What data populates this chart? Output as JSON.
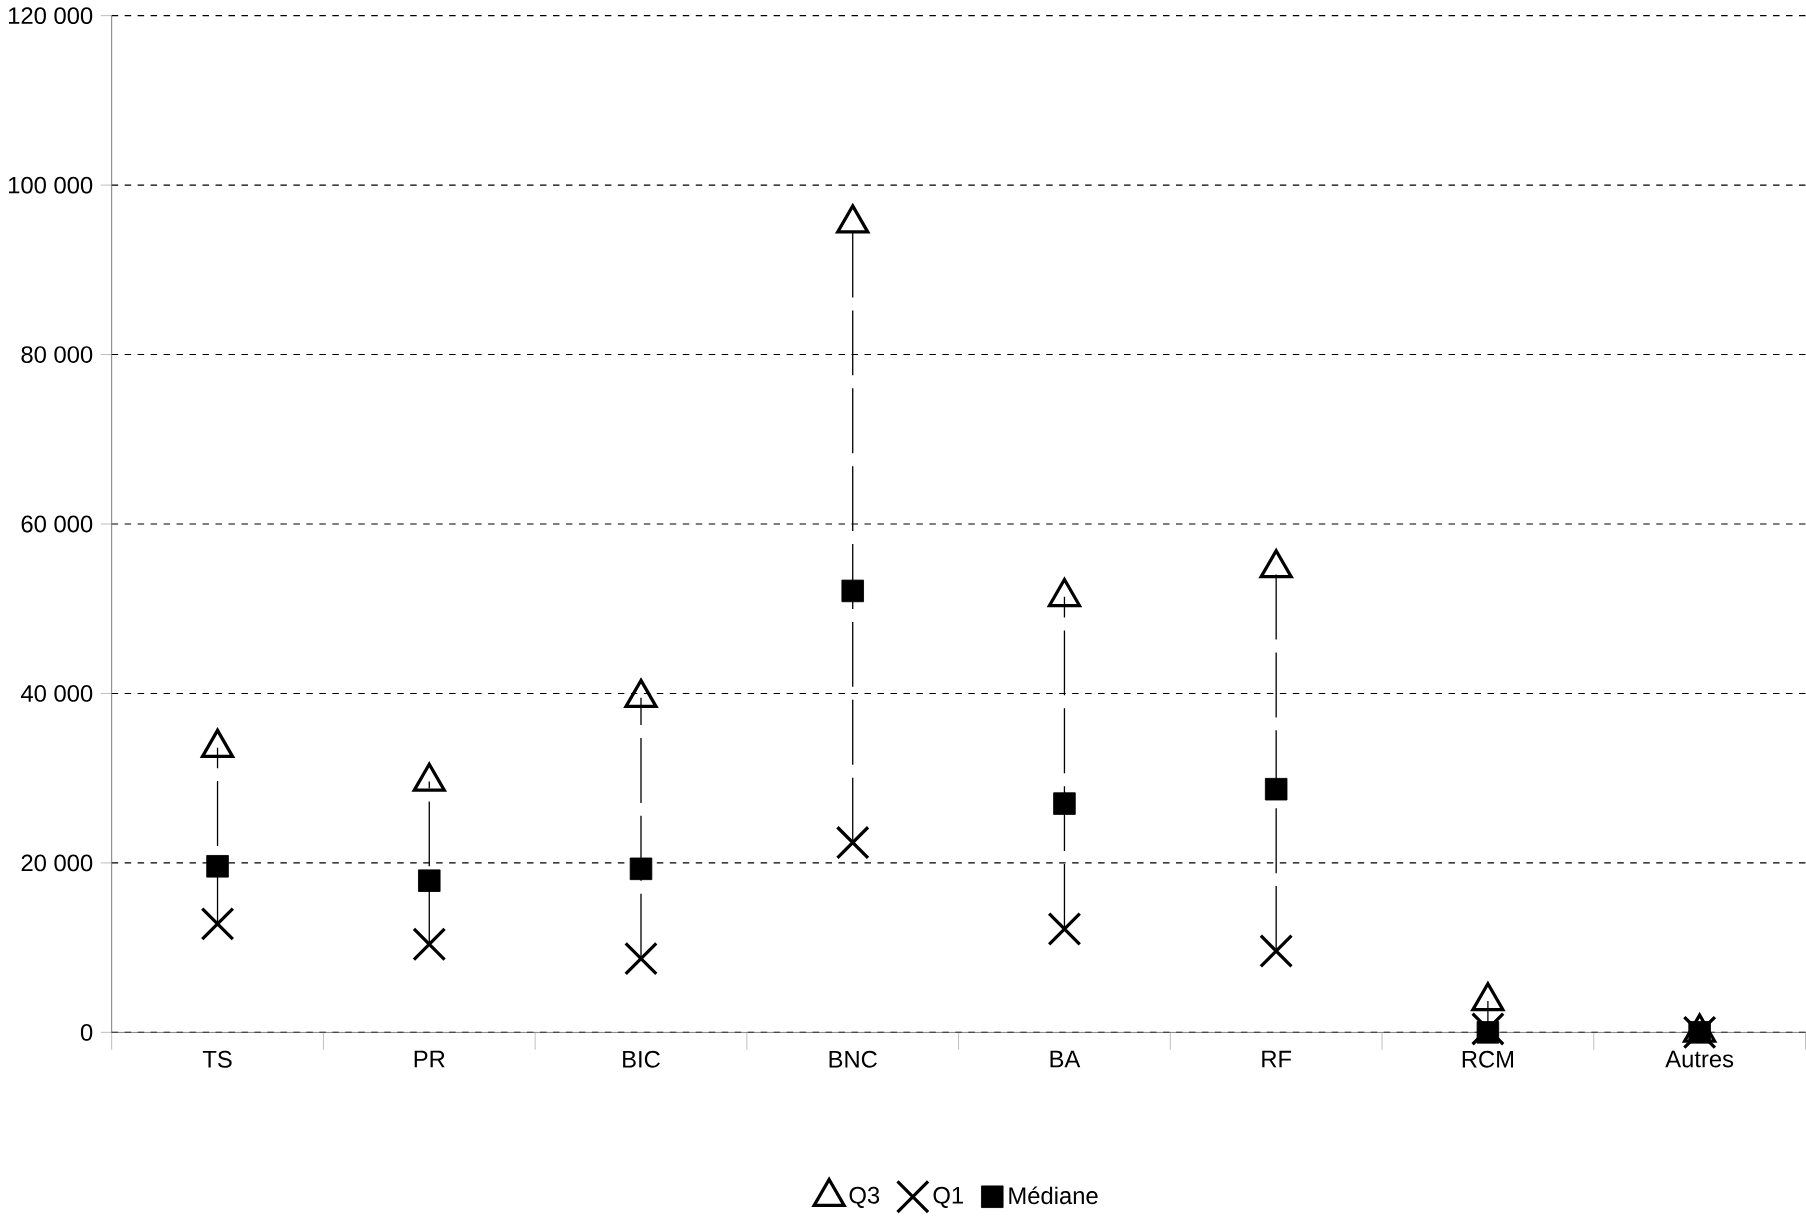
{
  "chart_data": {
    "type": "scatter",
    "categories": [
      "TS",
      "PR",
      "BIC",
      "BNC",
      "BA",
      "RF",
      "RCM",
      "Autres"
    ],
    "series": [
      {
        "name": "Q3",
        "color": "#000000",
        "marker": "triangle",
        "values": [
          33600,
          29600,
          39500,
          95500,
          51400,
          54800,
          3700,
          0
        ]
      },
      {
        "name": "Q1",
        "color": "#000000",
        "marker": "cross",
        "values": [
          12800,
          10400,
          8700,
          22400,
          12200,
          9600,
          400,
          0
        ]
      },
      {
        "name": "Médiane",
        "color": "#000000",
        "marker": "square",
        "values": [
          19600,
          17900,
          19300,
          52100,
          27000,
          28700,
          0,
          0
        ]
      }
    ],
    "ylim": [
      0,
      120000
    ],
    "yticks": [
      {
        "value": 0,
        "label": "0"
      },
      {
        "value": 20000,
        "label": "20 000"
      },
      {
        "value": 40000,
        "label": "40 000"
      },
      {
        "value": 60000,
        "label": "60 000"
      },
      {
        "value": 80000,
        "label": "80 000"
      },
      {
        "value": 100000,
        "label": "100 000"
      },
      {
        "value": 120000,
        "label": "120 000"
      }
    ],
    "grid": "y",
    "legend": "bottom"
  }
}
